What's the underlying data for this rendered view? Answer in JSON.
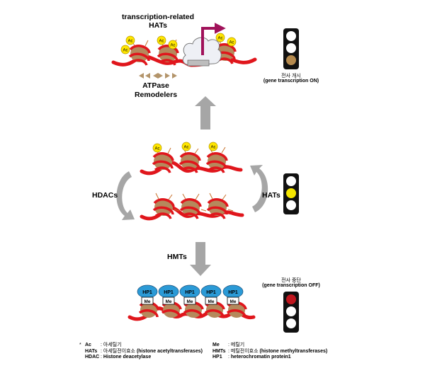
{
  "labels": {
    "top_hats": "transcription-related HATs",
    "remodelers": "ATPase Remodelers",
    "hdacs": "HDACs",
    "hats": "HATs",
    "hmts": "HMTs"
  },
  "marks": {
    "acetyl": "Ac",
    "hp1": "HP1",
    "methyl": "Me"
  },
  "status": {
    "on_korean": "전사 개시",
    "on_english": "(gene transcription ON)",
    "off_korean": "전사 중단",
    "off_english": "(gene transcription OFF)"
  },
  "traffic_light_colors": {
    "on": "#b58a4e",
    "middle": "#f5e600",
    "off": "#c0161e",
    "inactive": "#ffffff"
  },
  "legend": {
    "asterisk": "*",
    "left": [
      {
        "key": "Ac",
        "sep": ":",
        "desc": "아세틸기",
        "extra": ""
      },
      {
        "key": "HATs",
        "sep": ":",
        "desc": "아세틸전이효소",
        "extra": "(histone acetyltransferases)"
      },
      {
        "key": "HDAC",
        "sep": ":",
        "desc": "Histone deacetylase",
        "extra": ""
      }
    ],
    "right": [
      {
        "key": "Me",
        "sep": ":",
        "desc": "메틸기",
        "extra": ""
      },
      {
        "key": "HMTs",
        "sep": ":",
        "desc": "메틸전이효소",
        "extra": "(histone methyltransferases)"
      },
      {
        "key": "HP1",
        "sep": ":",
        "desc": "heterochromatin protein1",
        "extra": ""
      }
    ]
  },
  "colors": {
    "dna": "#e0161c",
    "histone": "#b5895c",
    "acetyl_fill": "#ffe600",
    "hp1_fill": "#2b9ad6",
    "arrow_gray": "#a6a6a6",
    "tss_arrow": "#a0125a",
    "remodeler_arrow": "#b3946a"
  }
}
